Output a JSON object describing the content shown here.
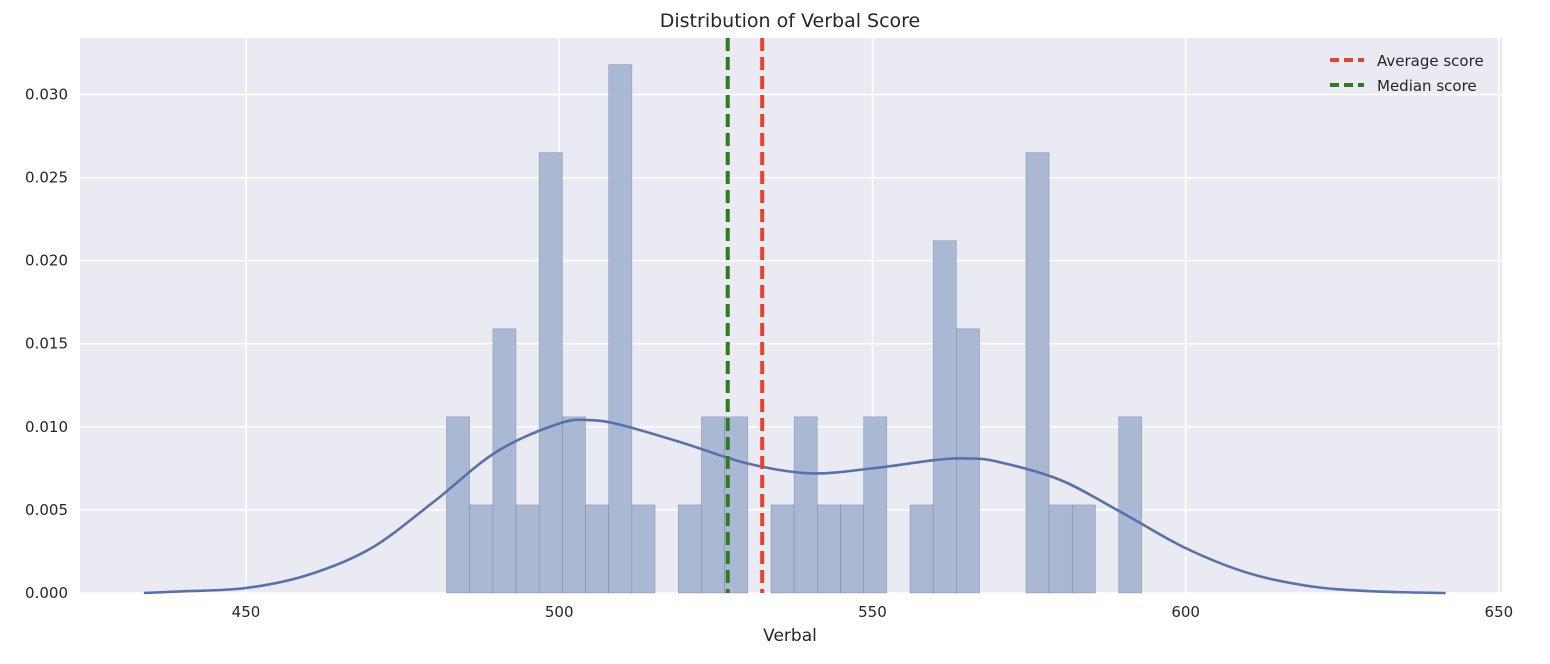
{
  "chart_data": {
    "type": "bar",
    "title": "Distribution of Verbal Score",
    "xlabel": "Verbal",
    "ylabel": "",
    "xlim": [
      423.5,
      650.5
    ],
    "ylim": [
      0,
      0.0334
    ],
    "xticks": [
      450,
      500,
      550,
      600,
      650
    ],
    "yticks": [
      0.0,
      0.005,
      0.01,
      0.015,
      0.02,
      0.025,
      0.03
    ],
    "xtick_labels": [
      "450",
      "500",
      "550",
      "600",
      "650"
    ],
    "ytick_labels": [
      "0.000",
      "0.005",
      "0.010",
      "0.015",
      "0.020",
      "0.025",
      "0.030"
    ],
    "grid": true,
    "legend_position": "top-right",
    "bin_width": 3.7,
    "bins": [
      {
        "x0": 482.0,
        "value": 0.0106
      },
      {
        "x0": 485.7,
        "value": 0.0053
      },
      {
        "x0": 489.4,
        "value": 0.0159
      },
      {
        "x0": 493.1,
        "value": 0.0053
      },
      {
        "x0": 496.8,
        "value": 0.0265
      },
      {
        "x0": 500.5,
        "value": 0.0106
      },
      {
        "x0": 504.2,
        "value": 0.0053
      },
      {
        "x0": 507.9,
        "value": 0.0318
      },
      {
        "x0": 511.6,
        "value": 0.0053
      },
      {
        "x0": 519.0,
        "value": 0.0053
      },
      {
        "x0": 522.7,
        "value": 0.0106
      },
      {
        "x0": 526.4,
        "value": 0.0106
      },
      {
        "x0": 533.8,
        "value": 0.0053
      },
      {
        "x0": 537.5,
        "value": 0.0106
      },
      {
        "x0": 541.2,
        "value": 0.0053
      },
      {
        "x0": 544.9,
        "value": 0.0053
      },
      {
        "x0": 548.6,
        "value": 0.0106
      },
      {
        "x0": 556.0,
        "value": 0.0053
      },
      {
        "x0": 559.7,
        "value": 0.0212
      },
      {
        "x0": 563.4,
        "value": 0.0159
      },
      {
        "x0": 574.5,
        "value": 0.0265
      },
      {
        "x0": 578.2,
        "value": 0.0053
      },
      {
        "x0": 581.9,
        "value": 0.0053
      },
      {
        "x0": 589.3,
        "value": 0.0106
      }
    ],
    "kde": {
      "name": "",
      "x": [
        433.7,
        440,
        450,
        460,
        470,
        480,
        490,
        500,
        505,
        510,
        520,
        530,
        540,
        550,
        560,
        565,
        570,
        580,
        590,
        600,
        610,
        620,
        630,
        641.5
      ],
      "y": [
        0.0,
        0.0001,
        0.0003,
        0.0011,
        0.0027,
        0.0055,
        0.0085,
        0.0102,
        0.0104,
        0.0101,
        0.009,
        0.0078,
        0.0072,
        0.0075,
        0.008,
        0.0081,
        0.0079,
        0.0068,
        0.0048,
        0.0027,
        0.0012,
        0.0004,
        0.0001,
        0.0
      ]
    },
    "reference_lines": [
      {
        "name": "Average score",
        "x": 532.4,
        "color": "#e8412f"
      },
      {
        "name": "Median score",
        "x": 526.9,
        "color": "#2e7d1c"
      }
    ],
    "colors": {
      "plot_background": "#eaeaf2",
      "grid": "#ffffff",
      "bar_fill": "#a9b8d3",
      "bar_edge": "#6a7890",
      "kde": "#5572ad"
    }
  }
}
